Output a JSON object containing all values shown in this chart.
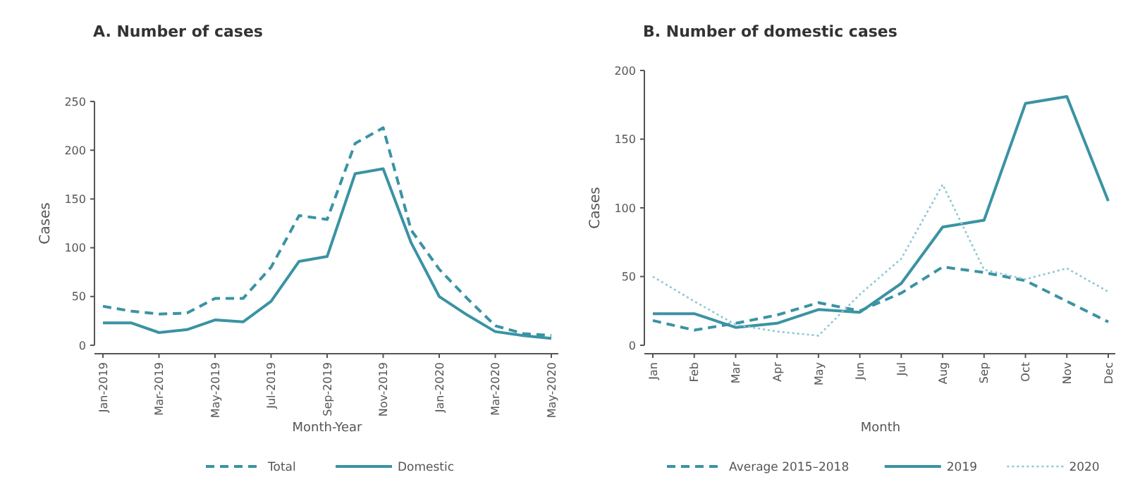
{
  "chart_data": [
    {
      "type": "line",
      "title": "A. Number of cases",
      "xlabel": "Month-Year",
      "ylabel": "Cases",
      "categories": [
        "Jan-2019",
        null,
        "Mar-2019",
        null,
        "May-2019",
        null,
        "Jul-2019",
        null,
        "Sep-2019",
        null,
        "Nov-2019",
        null,
        "Jan-2020",
        null,
        "Mar-2020",
        null,
        "May-2020"
      ],
      "ylim": [
        0,
        250
      ],
      "yticks": [
        0,
        50,
        100,
        150,
        200,
        250
      ],
      "legend": "bottom",
      "marker": "none",
      "series": [
        {
          "name": "Total",
          "color": "#3a93a3",
          "line_style": "dashed",
          "values": [
            40,
            35,
            32,
            33,
            48,
            48,
            80,
            133,
            129,
            207,
            223,
            118,
            78,
            48,
            20,
            12,
            10
          ]
        },
        {
          "name": "Domestic",
          "color": "#3a93a3",
          "line_style": "solid",
          "values": [
            23,
            23,
            13,
            16,
            26,
            24,
            45,
            86,
            91,
            176,
            181,
            105,
            50,
            31,
            14,
            10,
            7
          ]
        }
      ]
    },
    {
      "type": "line",
      "title": "B. Number of domestic cases",
      "xlabel": "Month",
      "ylabel": "Cases",
      "categories": [
        "Jan",
        "Feb",
        "Mar",
        "Apr",
        "May",
        "Jun",
        "Jul",
        "Aug",
        "Sep",
        "Oct",
        "Nov",
        "Dec"
      ],
      "ylim": [
        0,
        200
      ],
      "yticks": [
        0,
        50,
        100,
        150,
        200
      ],
      "legend": "bottom",
      "marker": "none",
      "series": [
        {
          "name": "Average 2015–2018",
          "color": "#3a93a3",
          "line_style": "dashed",
          "values": [
            18,
            11,
            16,
            22,
            31,
            25,
            38,
            57,
            53,
            47,
            32,
            17
          ]
        },
        {
          "name": "2019",
          "color": "#3a93a3",
          "line_style": "solid",
          "values": [
            23,
            23,
            13,
            16,
            26,
            24,
            45,
            86,
            91,
            176,
            181,
            105
          ]
        },
        {
          "name": "2020",
          "color": "#8cc8d2",
          "line_style": "dotted",
          "values": [
            50,
            32,
            15,
            10,
            7,
            37,
            63,
            117,
            55,
            48,
            56,
            39
          ]
        }
      ]
    }
  ]
}
